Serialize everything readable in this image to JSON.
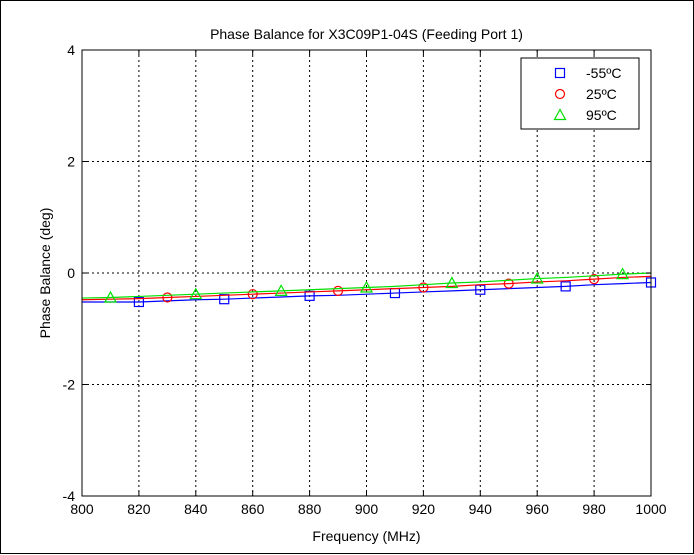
{
  "chart_data": {
    "type": "line",
    "title": "Phase Balance for X3C09P1-04S (Feeding Port 1)",
    "xlabel": "Frequency (MHz)",
    "ylabel": "Phase Balance (deg)",
    "xlim": [
      800,
      1000
    ],
    "ylim": [
      -4,
      4
    ],
    "xticks": [
      800,
      820,
      840,
      860,
      880,
      900,
      920,
      940,
      960,
      980,
      1000
    ],
    "yticks": [
      -4,
      -2,
      0,
      2,
      4
    ],
    "grid": true,
    "legend_position": "top-right",
    "series": [
      {
        "name": "-55ºC",
        "color": "#0000ff",
        "marker": "square",
        "x": [
          800,
          810,
          820,
          830,
          840,
          850,
          860,
          870,
          880,
          890,
          900,
          910,
          920,
          930,
          940,
          950,
          960,
          970,
          980,
          990,
          1000
        ],
        "y": [
          -0.52,
          -0.52,
          -0.52,
          -0.5,
          -0.48,
          -0.47,
          -0.45,
          -0.43,
          -0.41,
          -0.4,
          -0.38,
          -0.36,
          -0.34,
          -0.32,
          -0.3,
          -0.28,
          -0.26,
          -0.24,
          -0.21,
          -0.19,
          -0.17
        ],
        "marker_x": [
          820,
          850,
          880,
          910,
          940,
          970,
          1000
        ],
        "marker_y": [
          -0.52,
          -0.47,
          -0.41,
          -0.36,
          -0.3,
          -0.24,
          -0.17
        ]
      },
      {
        "name": "25ºC",
        "color": "#ff0000",
        "marker": "circle",
        "x": [
          800,
          810,
          820,
          830,
          840,
          850,
          860,
          870,
          880,
          890,
          900,
          910,
          920,
          930,
          940,
          950,
          960,
          970,
          980,
          990,
          1000
        ],
        "y": [
          -0.48,
          -0.47,
          -0.46,
          -0.44,
          -0.42,
          -0.4,
          -0.38,
          -0.36,
          -0.34,
          -0.32,
          -0.3,
          -0.28,
          -0.26,
          -0.24,
          -0.21,
          -0.19,
          -0.16,
          -0.14,
          -0.11,
          -0.08,
          -0.06
        ],
        "marker_x": [
          830,
          860,
          890,
          920,
          950,
          980
        ],
        "marker_y": [
          -0.44,
          -0.38,
          -0.32,
          -0.26,
          -0.19,
          -0.11
        ]
      },
      {
        "name": "95ºC",
        "color": "#00e000",
        "marker": "triangle",
        "x": [
          800,
          810,
          820,
          830,
          840,
          850,
          860,
          870,
          880,
          890,
          900,
          910,
          920,
          930,
          940,
          950,
          960,
          970,
          980,
          990,
          1000
        ],
        "y": [
          -0.45,
          -0.44,
          -0.42,
          -0.4,
          -0.38,
          -0.36,
          -0.34,
          -0.32,
          -0.3,
          -0.28,
          -0.26,
          -0.24,
          -0.21,
          -0.18,
          -0.16,
          -0.13,
          -0.1,
          -0.08,
          -0.05,
          -0.02,
          0.0
        ],
        "marker_x": [
          810,
          840,
          870,
          900,
          930,
          960,
          990
        ],
        "marker_y": [
          -0.44,
          -0.38,
          -0.32,
          -0.26,
          -0.18,
          -0.1,
          -0.02
        ]
      }
    ]
  }
}
